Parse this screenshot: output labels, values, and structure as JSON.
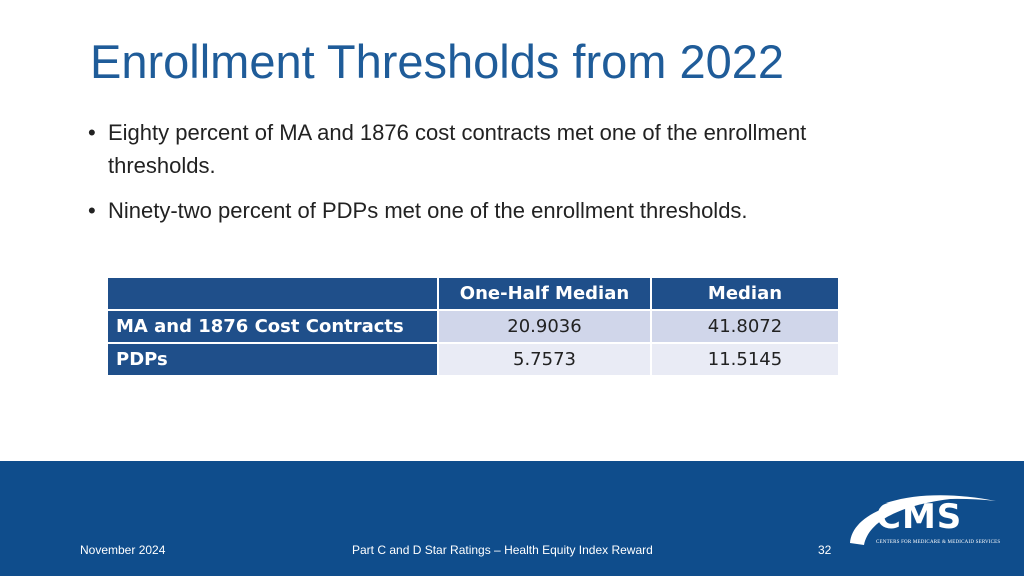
{
  "slide": {
    "title": "Enrollment Thresholds from 2022",
    "bullets": [
      "Eighty percent of MA and 1876 cost contracts met one of the enrollment thresholds.",
      "Ninety-two percent of PDPs met one of the enrollment thresholds."
    ]
  },
  "table": {
    "headers": [
      "",
      "One-Half Median",
      "Median"
    ],
    "rows": [
      {
        "label": "MA and 1876 Cost Contracts",
        "half_median": "20.9036",
        "median": "41.8072"
      },
      {
        "label": "PDPs",
        "half_median": "5.7573",
        "median": "11.5145"
      }
    ]
  },
  "footer": {
    "date": "November 2024",
    "center": "Part C and D Star Ratings – Health Equity Index Reward",
    "page_number": "32",
    "logo_text": "CMS",
    "logo_subtext": "CENTERS FOR MEDICARE & MEDICAID SERVICES"
  },
  "colors": {
    "title": "#1f5c99",
    "table_header": "#1f4f8a",
    "row_a": "#d0d6ea",
    "row_b": "#e9ebf5",
    "footer": "#0f4d8c"
  }
}
